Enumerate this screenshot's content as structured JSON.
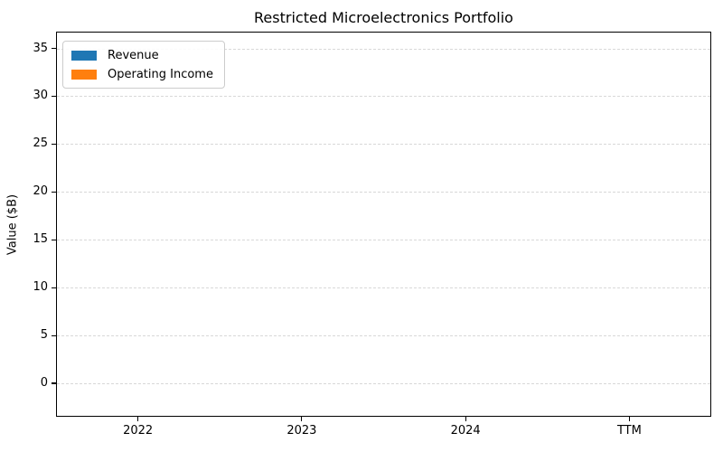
{
  "chart_data": {
    "type": "bar",
    "title": "Restricted Microelectronics Portfolio",
    "ylabel": "Value ($B)",
    "xlabel": "",
    "categories": [
      "2022",
      "2023",
      "2024",
      "TTM"
    ],
    "series": [
      {
        "name": "Revenue",
        "color": "#1f77b4",
        "values": [
          0,
          0,
          0,
          0
        ]
      },
      {
        "name": "Operating Income",
        "color": "#ff7f0e",
        "values": [
          0,
          0,
          0,
          0
        ]
      }
    ],
    "yticks": [
      0,
      5,
      10,
      15,
      20,
      25,
      30,
      35
    ],
    "ylim": [
      -3.5,
      36.75
    ],
    "grid": "dashed-horizontal",
    "grid_color": "#d8d8d8",
    "spine_color": "#000000",
    "legend_position": "upper-left",
    "bars_visible": false
  }
}
